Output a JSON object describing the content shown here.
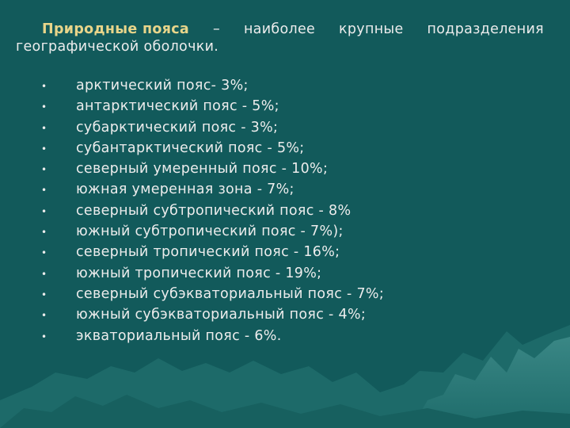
{
  "intro": {
    "title": "Природные пояса",
    "words": [
      "–",
      "наиболее",
      "крупные",
      "подразделения"
    ],
    "line2": "географической оболочки."
  },
  "bullet_symbol": "•",
  "belts": [
    "арктический пояс- 3%;",
    "антарктический пояс - 5%;",
    "субарктический пояс - 3%;",
    "субантарктический пояс - 5%;",
    "северный умеренный пояс - 10%;",
    "южная умеренная зона - 7%;",
    "северный субтропический пояс - 8%",
    "южный субтропический пояс - 7%);",
    "северный тропический пояс - 16%;",
    "южный тропический пояс - 19%;",
    "северный субэкваториальный пояс - 7%;",
    "южный субэкваториальный пояс - 4%;",
    "экваториальный пояс - 6%."
  ]
}
